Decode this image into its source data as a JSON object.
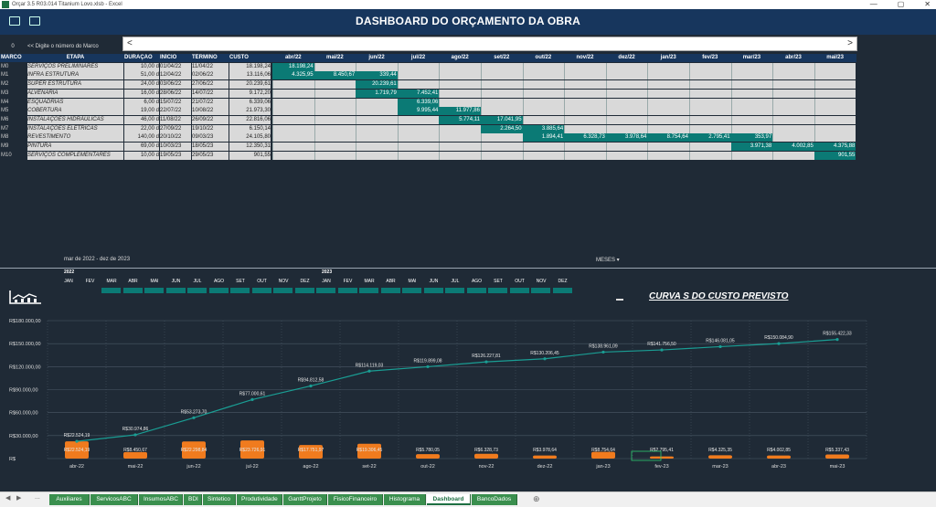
{
  "window": {
    "title": "Orçar 3.5 R03.014 Titanium Lovo.xlsb - Excel",
    "min": "—",
    "max": "▢",
    "close": "✕"
  },
  "header": {
    "title": "DASHBOARD DO ORÇAMENTO DA OBRA"
  },
  "selector": {
    "value": "0",
    "hint": "<< Digite o número do Marco",
    "left_arrow": "<",
    "right_arrow": ">"
  },
  "gantt": {
    "headers": {
      "marco": "MARCO",
      "etapa": "ETAPA",
      "duracao": "DURAÇÃO",
      "inicio": "INÍCIO",
      "termino": "TÉRMINO",
      "custo": "CUSTO"
    },
    "months": [
      "abr/22",
      "mai/22",
      "jun/22",
      "jul/22",
      "ago/22",
      "set/22",
      "out/22",
      "nov/22",
      "dez/22",
      "jan/23",
      "fev/23",
      "mar/23",
      "abr/23",
      "mai/23"
    ],
    "rows": [
      {
        "marco": "M0",
        "etapa": "SERVIÇOS PRELIMINARES",
        "duracao": "10,00 d",
        "inicio": "01/04/22",
        "termino": "11/04/22",
        "custo": "18.198,24",
        "bars": [
          {
            "m": 0,
            "v": "18.198,24"
          }
        ]
      },
      {
        "marco": "M1",
        "etapa": "INFRA ESTRUTURA",
        "duracao": "51,00 d",
        "inicio": "12/04/22",
        "termino": "02/06/22",
        "custo": "13.116,06",
        "bars": [
          {
            "m": 0,
            "v": "4.325,95"
          },
          {
            "m": 1,
            "v": "8.450,67"
          },
          {
            "m": 2,
            "v": "339,44"
          }
        ]
      },
      {
        "marco": "M2",
        "etapa": "SUPER ESTRUTURA",
        "duracao": "24,00 d",
        "inicio": "03/06/22",
        "termino": "27/06/22",
        "custo": "20.239,61",
        "bars": [
          {
            "m": 2,
            "v": "20.239,61"
          }
        ]
      },
      {
        "marco": "M3",
        "etapa": "ALVENARIA",
        "duracao": "16,00 d",
        "inicio": "28/06/22",
        "termino": "14/07/22",
        "custo": "9.172,20",
        "bars": [
          {
            "m": 2,
            "v": "1.719,79"
          },
          {
            "m": 3,
            "v": "7.452,41"
          }
        ]
      },
      {
        "marco": "M4",
        "etapa": "ESQUADRIAS",
        "duracao": "6,00 d",
        "inicio": "15/07/22",
        "termino": "21/07/22",
        "custo": "6.339,06",
        "bars": [
          {
            "m": 3,
            "v": "6.339,06"
          }
        ]
      },
      {
        "marco": "M5",
        "etapa": "COBERTURA",
        "duracao": "19,00 d",
        "inicio": "22/07/22",
        "termino": "10/08/22",
        "custo": "21.973,30",
        "bars": [
          {
            "m": 3,
            "v": "9.995,44"
          },
          {
            "m": 4,
            "v": "11.977,86"
          }
        ]
      },
      {
        "marco": "M6",
        "etapa": "INSTALAÇÕES HIDRÁULICAS",
        "duracao": "46,00 d",
        "inicio": "11/08/22",
        "termino": "26/09/22",
        "custo": "22.816,06",
        "bars": [
          {
            "m": 4,
            "v": "5.774,11"
          },
          {
            "m": 5,
            "v": "17.041,95"
          }
        ]
      },
      {
        "marco": "M7",
        "etapa": "INSTALAÇÕES ELÉTRICAS",
        "duracao": "22,00 d",
        "inicio": "27/09/22",
        "termino": "19/10/22",
        "custo": "6.150,14",
        "bars": [
          {
            "m": 5,
            "v": "2.264,50"
          },
          {
            "m": 6,
            "v": "3.885,64"
          }
        ]
      },
      {
        "marco": "M8",
        "etapa": "REVESTIMENTO",
        "duracao": "140,00 d",
        "inicio": "20/10/22",
        "termino": "09/03/23",
        "custo": "24.105,80",
        "bars": [
          {
            "m": 6,
            "v": "1.894,41"
          },
          {
            "m": 7,
            "v": "6.328,73"
          },
          {
            "m": 8,
            "v": "3.978,64"
          },
          {
            "m": 9,
            "v": "8.754,64"
          },
          {
            "m": 10,
            "v": "2.795,41"
          },
          {
            "m": 11,
            "v": "353,97"
          }
        ]
      },
      {
        "marco": "M9",
        "etapa": "PINTURA",
        "duracao": "69,00 d",
        "inicio": "10/03/23",
        "termino": "18/05/23",
        "custo": "12.350,31",
        "bars": [
          {
            "m": 11,
            "v": "3.971,38"
          },
          {
            "m": 12,
            "v": "4.002,85"
          },
          {
            "m": 13,
            "v": "4.375,88"
          }
        ]
      },
      {
        "marco": "M10",
        "etapa": "SERVIÇOS COMPLEMENTARES",
        "duracao": "10,00 d",
        "inicio": "19/05/23",
        "termino": "29/05/23",
        "custo": "901,55",
        "bars": [
          {
            "m": 13,
            "v": "901,55"
          }
        ]
      }
    ]
  },
  "period": {
    "label": "mar de 2022 - dez de 2023",
    "meses": "MESES ▾"
  },
  "timeline": {
    "years": [
      "2022",
      "2023"
    ],
    "months": [
      "JAN",
      "FEV",
      "MAR",
      "ABR",
      "MAI",
      "JUN",
      "JUL",
      "AGO",
      "SET",
      "OUT",
      "NOV",
      "DEZ",
      "JAN",
      "FEV",
      "MAR",
      "ABR",
      "MAI",
      "JUN",
      "JUL",
      "AGO",
      "SET",
      "OUT",
      "NOV",
      "DEZ"
    ],
    "selected_from": 2,
    "selected_to": 13
  },
  "curve": {
    "title": "CURVA S DO CUSTO PREVISTO"
  },
  "chart_data": {
    "type": "line",
    "title": "CURVA S DO CUSTO PREVISTO",
    "categories": [
      "abr-22",
      "mai-22",
      "jun-22",
      "jul-22",
      "ago-22",
      "set-22",
      "out-22",
      "nov-22",
      "dez-22",
      "jan-23",
      "fev-23",
      "mar-23",
      "abr-23",
      "mai-23"
    ],
    "ylim": [
      0,
      180000
    ],
    "yticks": [
      0,
      30000,
      60000,
      90000,
      120000,
      150000,
      180000
    ],
    "ytick_labels": [
      "R$",
      "R$30.000,00",
      "R$60.000,00",
      "R$90.000,00",
      "R$120.000,00",
      "R$150.000,00",
      "R$180.000,00"
    ],
    "series": [
      {
        "kind": "line",
        "values": [
          22524.19,
          30974.86,
          53273.7,
          77000.61,
          94812.58,
          114119.03,
          119899.08,
          126227.81,
          130206.45,
          138961.09,
          141756.5,
          146081.05,
          150084.9,
          155422.33
        ],
        "labels": [
          "R$22.524,19",
          "R$30.974,86",
          "R$53.273,70",
          "R$77.000,61",
          "R$94.812,58",
          "R$114.119,03",
          "R$119.899,08",
          "R$126.227,81",
          "R$130.206,45",
          "R$138.961,09",
          "R$141.756,50",
          "R$146.081,05",
          "R$150.084,90",
          "R$155.422,33"
        ]
      },
      {
        "kind": "bar",
        "values": [
          22524.19,
          8450.67,
          22298.84,
          23726.91,
          17751.97,
          19306.45,
          5780.05,
          6328.73,
          3978.64,
          8754.64,
          2795.41,
          4325.35,
          4002.85,
          5337.43
        ],
        "labels": [
          "R$22.524,19",
          "R$8.450,67",
          "R$22.298,84",
          "R$23.726,91",
          "R$17.751,97",
          "R$19.306,45",
          "R$5.780,05",
          "R$6.328,73",
          "R$3.978,64",
          "R$8.754,64",
          "R$2.795,41",
          "R$4.325,35",
          "R$4.002,85",
          "R$5.337,43"
        ]
      }
    ],
    "grid": true,
    "colors": {
      "line": "#1a9e94",
      "bar": "#f07b1e",
      "grid": "#4a5866"
    }
  },
  "sheet_tabs": {
    "nav": [
      "◀",
      "▶",
      "..."
    ],
    "items": [
      "Auxiliares",
      "ServicosABC",
      "InsumosABC",
      "BDI",
      "Sintetico",
      "Produtividade",
      "GanttProjeto",
      "FisicoFinanceiro",
      "Histograma",
      "Dashboard",
      "BancoDados"
    ],
    "active": "Dashboard",
    "add": "⊕"
  },
  "colors": {
    "header_bg": "#17365d",
    "teal": "#0b7a75",
    "bg": "#1f2a36"
  }
}
